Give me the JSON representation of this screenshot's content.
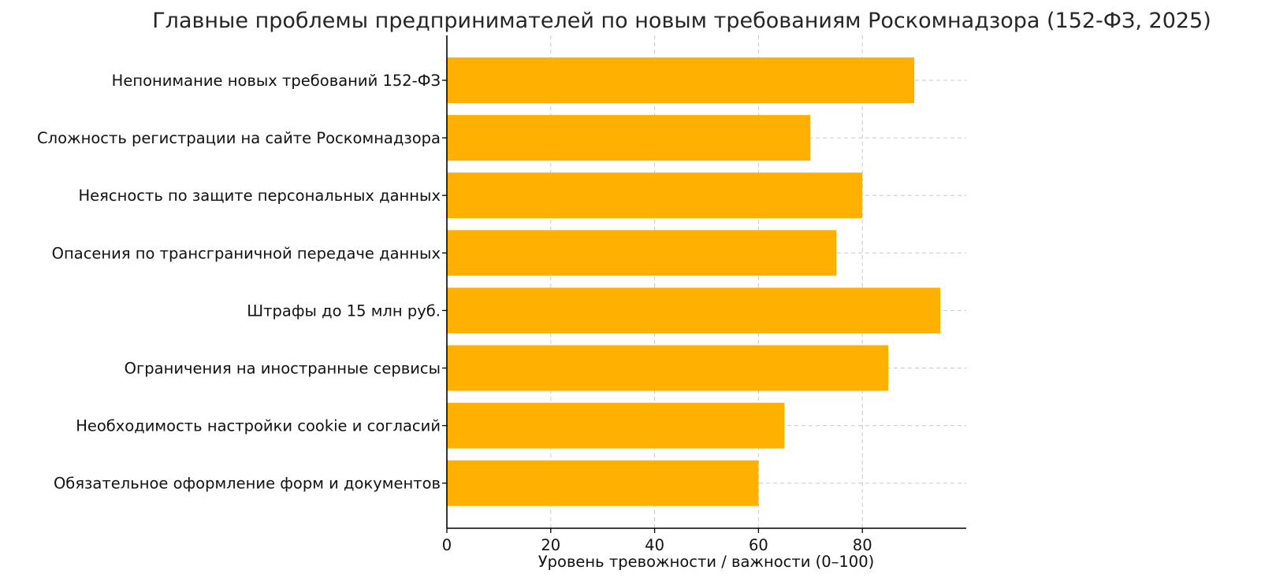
{
  "chart_data": {
    "type": "bar",
    "orientation": "horizontal",
    "title": "Главные проблемы предпринимателей по новым требованиям Роскомнадзора (152-ФЗ, 2025)",
    "xlabel": "Уровень тревожности / важности (0–100)",
    "ylabel": "",
    "xlim": [
      0,
      100
    ],
    "xticks": [
      0,
      20,
      40,
      60,
      80
    ],
    "grid": true,
    "bar_color": "#FFB000",
    "categories": [
      "Непонимание новых требований 152-ФЗ",
      "Сложность регистрации на сайте Роскомнадзора",
      "Неясность по защите персональных данных",
      "Опасения по трансграничной передаче данных",
      "Штрафы до 15 млн руб.",
      "Ограничения на иностранные сервисы",
      "Необходимость настройки cookie и согласий",
      "Обязательное оформление форм и документов"
    ],
    "values": [
      90,
      70,
      80,
      75,
      95,
      85,
      65,
      60
    ]
  }
}
